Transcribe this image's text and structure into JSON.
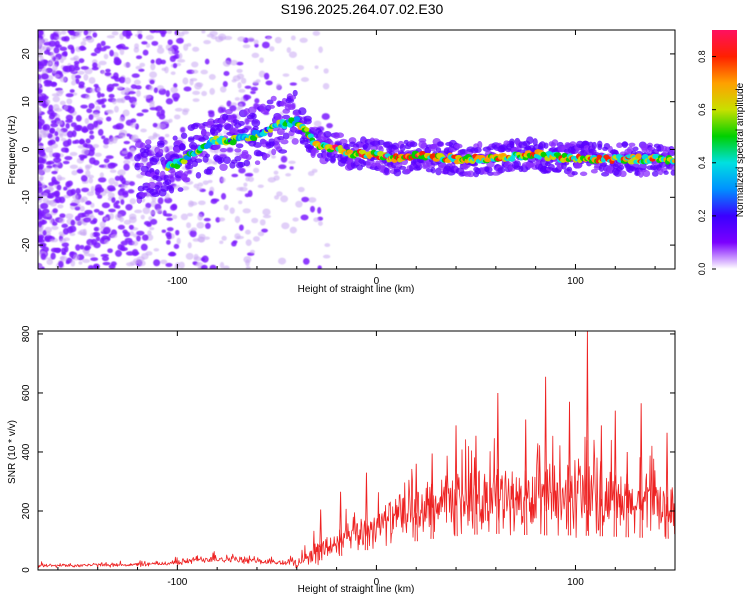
{
  "title": "S196.2025.264.07.02.E30",
  "colors": {
    "snr_line": "#ee2222",
    "colormap": [
      "#ffffff",
      "#7b00ff",
      "#3a00ff",
      "#0090ff",
      "#00e0e0",
      "#00d000",
      "#c8e000",
      "#ffa000",
      "#ff2000",
      "#ff1060"
    ]
  },
  "chart_data": [
    {
      "type": "heatmap",
      "name": "spectrogram",
      "xlabel": "Height of straight line (km)",
      "ylabel": "Frequency (Hz)",
      "xlim": [
        -170,
        150
      ],
      "ylim": [
        -25,
        25
      ],
      "xticks": [
        -100,
        0,
        100
      ],
      "xtick_labels": [
        "-100",
        "0",
        "100"
      ],
      "yticks": [
        -20,
        -10,
        0,
        10,
        20
      ],
      "ytick_labels": [
        "-20",
        "-10",
        "0",
        "10",
        "20"
      ],
      "ridge_x": [
        -170,
        -110,
        -100,
        -90,
        -80,
        -70,
        -60,
        -50,
        -40,
        -35,
        -30,
        -20,
        -10,
        0,
        10,
        20,
        40,
        60,
        80,
        100,
        120,
        150
      ],
      "ridge_y": [
        -8,
        -4,
        -3,
        0,
        2,
        2,
        3,
        5,
        6,
        4,
        1,
        0,
        -1,
        -1,
        -2,
        -1,
        -2,
        -2,
        -1,
        -2,
        -2,
        -2
      ],
      "colorbar": {
        "label": "Normalized spectral amplitude",
        "range": [
          0,
          0.9
        ],
        "ticks": [
          0.0,
          0.2,
          0.4,
          0.6,
          0.8
        ],
        "tick_labels": [
          "0.0",
          "0.2",
          "0.4",
          "0.6",
          "0.8"
        ]
      }
    },
    {
      "type": "line",
      "name": "snr",
      "xlabel": "Height of straight line (km)",
      "ylabel": "SNR (10 * v/v)",
      "xlim": [
        -170,
        150
      ],
      "ylim": [
        0,
        810
      ],
      "xticks": [
        -100,
        0,
        100
      ],
      "xtick_labels": [
        "-100",
        "0",
        "100"
      ],
      "yticks": [
        0,
        200,
        400,
        600,
        800
      ],
      "ytick_labels": [
        "0",
        "200",
        "400",
        "600",
        "800"
      ],
      "envelope_x": [
        -170,
        -120,
        -100,
        -90,
        -80,
        -60,
        -50,
        -40,
        -30,
        -20,
        -10,
        0,
        10,
        20,
        30,
        40,
        50,
        60,
        70,
        80,
        90,
        100,
        110,
        120,
        130,
        140,
        150
      ],
      "envelope_mean": [
        15,
        18,
        25,
        35,
        40,
        30,
        25,
        25,
        60,
        90,
        120,
        150,
        175,
        195,
        215,
        230,
        240,
        245,
        240,
        235,
        235,
        235,
        230,
        225,
        220,
        215,
        210
      ],
      "envelope_spread": [
        8,
        8,
        12,
        15,
        18,
        12,
        12,
        20,
        50,
        60,
        70,
        80,
        90,
        100,
        110,
        120,
        125,
        130,
        130,
        130,
        130,
        130,
        130,
        130,
        125,
        120,
        110
      ],
      "peaks": [
        {
          "x": -28,
          "y": 205
        },
        {
          "x": -18,
          "y": 265
        },
        {
          "x": -5,
          "y": 330
        },
        {
          "x": 20,
          "y": 360
        },
        {
          "x": 28,
          "y": 395
        },
        {
          "x": 40,
          "y": 490
        },
        {
          "x": 50,
          "y": 455
        },
        {
          "x": 61,
          "y": 600
        },
        {
          "x": 75,
          "y": 510
        },
        {
          "x": 85,
          "y": 655
        },
        {
          "x": 97,
          "y": 570
        },
        {
          "x": 106,
          "y": 810
        },
        {
          "x": 113,
          "y": 490
        },
        {
          "x": 120,
          "y": 540
        },
        {
          "x": 126,
          "y": 400
        },
        {
          "x": 133,
          "y": 565
        },
        {
          "x": 146,
          "y": 465
        }
      ]
    }
  ]
}
